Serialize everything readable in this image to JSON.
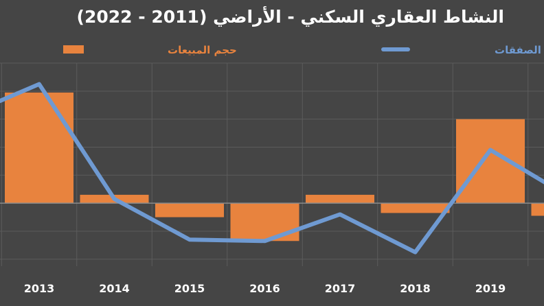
{
  "chart_data": {
    "type": "bar",
    "title": "النشاط العقاري السكني - الأراضي (2011 - 2022)",
    "categories": [
      "2013",
      "2014",
      "2015",
      "2016",
      "2017",
      "2018",
      "2019"
    ],
    "series": [
      {
        "name": "حجم المبيعات",
        "type": "bar",
        "color": "#e8833e",
        "values": [
          0.79,
          0.06,
          -0.1,
          -0.27,
          0.06,
          -0.07,
          0.6
        ]
      },
      {
        "name": "قيمة الصفقات",
        "type": "line",
        "color": "#6f9ad2",
        "values": [
          0.85,
          0.03,
          -0.26,
          -0.27,
          -0.08,
          -0.35,
          0.38
        ]
      }
    ],
    "edge_values": {
      "left_line": 0.62,
      "right_bar": -0.09,
      "right_line": 0.06
    },
    "ylim": [
      -0.45,
      1.0
    ],
    "grid": true,
    "legend_position": "top"
  }
}
